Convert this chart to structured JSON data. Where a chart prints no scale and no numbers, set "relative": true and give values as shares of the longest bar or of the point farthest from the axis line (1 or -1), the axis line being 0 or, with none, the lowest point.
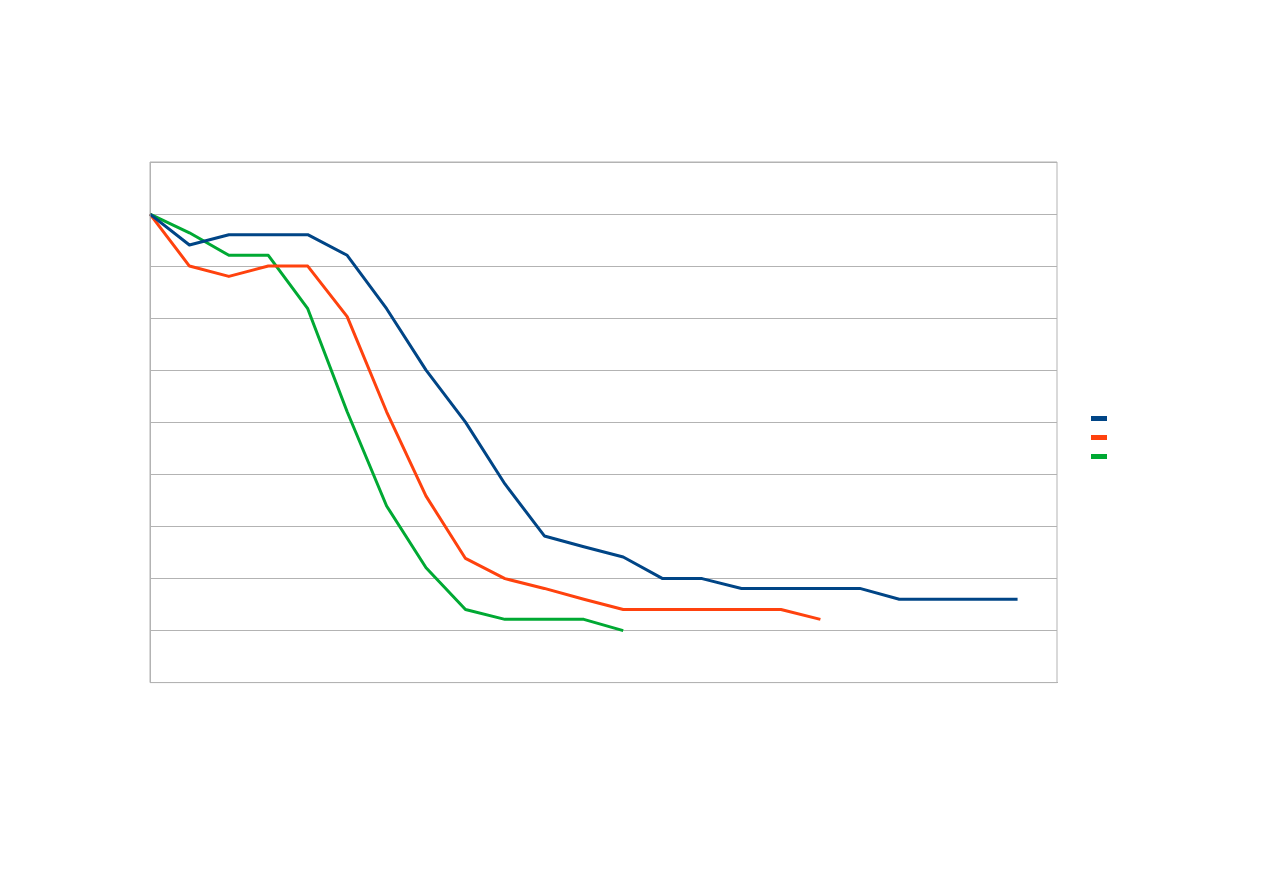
{
  "chart_data": {
    "type": "line",
    "relative": true,
    "grid": "y",
    "marker": "none",
    "line_style": "solid",
    "categories": [
      null,
      null,
      null,
      null,
      null,
      null,
      null,
      null,
      null,
      null,
      null,
      null,
      null,
      null,
      null,
      null,
      null,
      null,
      null,
      null,
      null,
      null,
      null,
      null
    ],
    "series": [
      {
        "color": "#004586",
        "values": [
          1,
          0.934,
          0.956,
          0.956,
          0.956,
          0.912,
          0.798,
          0.667,
          0.556,
          0.424,
          0.313,
          0.29,
          0.268,
          0.222,
          0.222,
          0.201,
          0.201,
          0.201,
          0.201,
          0.178,
          0.178,
          0.178,
          0.178,
          null
        ]
      },
      {
        "color": "#ff420e",
        "values": [
          1,
          0.889,
          0.867,
          0.889,
          0.889,
          0.781,
          0.578,
          0.398,
          0.265,
          0.222,
          0.201,
          0.178,
          0.156,
          0.156,
          0.156,
          0.156,
          0.156,
          0.135,
          null,
          null,
          null,
          null,
          null,
          null
        ]
      },
      {
        "color": "#00a933",
        "values": [
          1,
          0.96,
          0.912,
          0.912,
          0.798,
          0.578,
          0.377,
          0.245,
          0.156,
          0.135,
          0.135,
          0.135,
          0.111,
          null,
          null,
          null,
          null,
          null,
          null,
          null,
          null,
          null,
          null,
          null
        ]
      }
    ]
  }
}
